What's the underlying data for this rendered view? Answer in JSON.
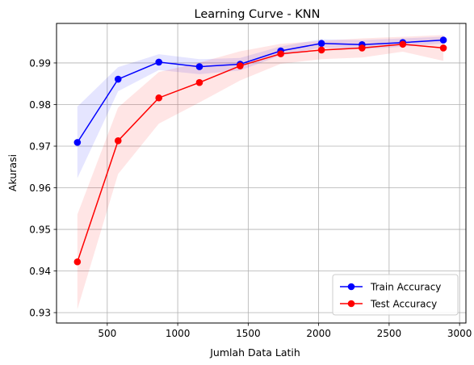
{
  "chart_data": {
    "type": "line",
    "title": "Learning Curve - KNN",
    "xlabel": "Jumlah Data Latih",
    "ylabel": "Akurasi",
    "xlim": [
      140,
      3045
    ],
    "ylim": [
      0.9275,
      0.9995
    ],
    "xticks": [
      500,
      1000,
      1500,
      2000,
      2500,
      3000
    ],
    "yticks": [
      0.93,
      0.94,
      0.95,
      0.96,
      0.97,
      0.98,
      0.99
    ],
    "grid": true,
    "legend_position": "lower-right",
    "x": [
      288,
      577,
      866,
      1154,
      1443,
      1731,
      2020,
      2308,
      2597,
      2885
    ],
    "series": [
      {
        "name": "Train Accuracy",
        "color": "#0000ff",
        "values": [
          0.9709,
          0.9861,
          0.9902,
          0.9891,
          0.9897,
          0.9929,
          0.9947,
          0.9944,
          0.9949,
          0.9955
        ],
        "band_lower": [
          0.9623,
          0.9832,
          0.9883,
          0.9873,
          0.9882,
          0.9918,
          0.9937,
          0.9933,
          0.9939,
          0.9947
        ],
        "band_upper": [
          0.9795,
          0.989,
          0.9921,
          0.9909,
          0.9912,
          0.994,
          0.9957,
          0.9955,
          0.9959,
          0.9963
        ]
      },
      {
        "name": "Test Accuracy",
        "color": "#ff0000",
        "values": [
          0.9422,
          0.9713,
          0.9816,
          0.9853,
          0.9893,
          0.9922,
          0.9931,
          0.9936,
          0.9945,
          0.9936
        ],
        "band_lower": [
          0.9308,
          0.9633,
          0.9754,
          0.9805,
          0.9858,
          0.9898,
          0.9909,
          0.9913,
          0.9927,
          0.9905
        ],
        "band_upper": [
          0.9536,
          0.9793,
          0.9878,
          0.9901,
          0.9928,
          0.9946,
          0.9953,
          0.9959,
          0.9963,
          0.9967
        ]
      }
    ]
  }
}
